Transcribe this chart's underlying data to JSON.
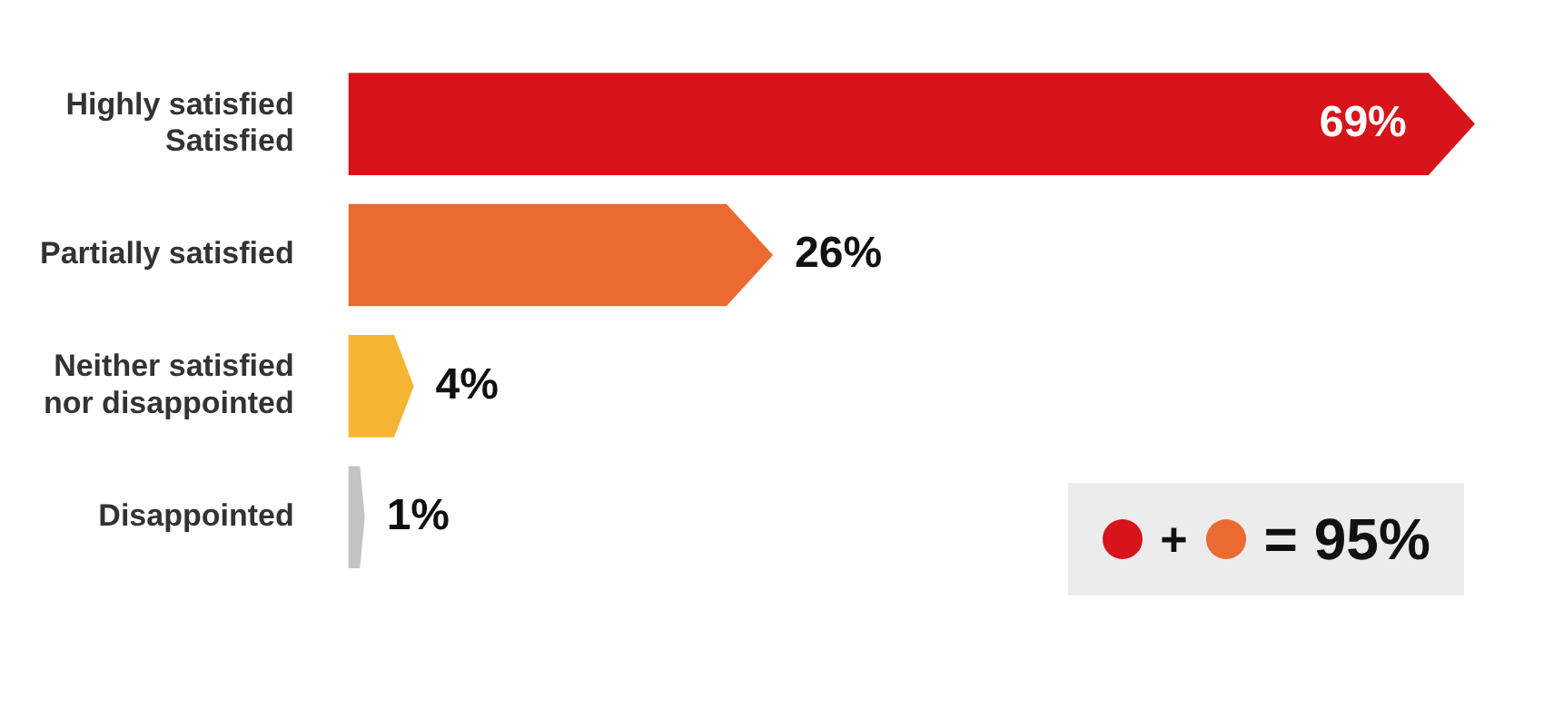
{
  "chart_data": {
    "type": "bar",
    "orientation": "horizontal",
    "categories": [
      "Highly satisfied\nSatisfied",
      "Partially satisfied",
      "Neither satisfied\nnor disappointed",
      "Disappointed"
    ],
    "values": [
      69,
      26,
      4,
      1
    ],
    "colors": [
      "#d7141a",
      "#ea6a32",
      "#f5b533",
      "#c4c4c4"
    ],
    "value_labels": [
      "69%",
      "26%",
      "4%",
      "1%"
    ],
    "xlim": [
      0,
      69
    ],
    "legend": false,
    "annotations": [
      "+",
      "= 95%"
    ]
  }
}
